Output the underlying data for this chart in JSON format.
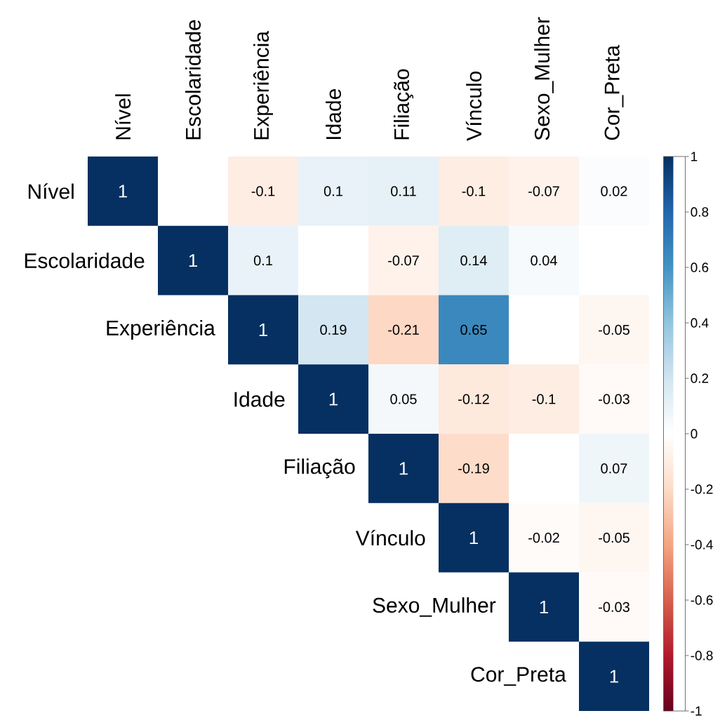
{
  "chart_data": {
    "type": "heatmap",
    "categories": [
      "Nível",
      "Escolaridade",
      "Experiência",
      "Idade",
      "Filiação",
      "Vínculo",
      "Sexo_Mulher",
      "Cor_Preta"
    ],
    "y_categories": [
      "Nível",
      "Escolaridade",
      "Experiência",
      "Idade",
      "Filiação",
      "Vínculo",
      "Sexo_Mulher",
      "Cor_Preta"
    ],
    "cells": [
      [
        1,
        null,
        -0.1,
        0.1,
        0.11,
        -0.1,
        -0.07,
        0.02
      ],
      [
        null,
        1,
        0.1,
        null,
        -0.07,
        0.14,
        0.04,
        null
      ],
      [
        null,
        null,
        1,
        0.19,
        -0.21,
        0.65,
        null,
        -0.05
      ],
      [
        null,
        null,
        null,
        1,
        0.05,
        -0.12,
        -0.1,
        -0.03
      ],
      [
        null,
        null,
        null,
        null,
        1,
        -0.19,
        null,
        0.07
      ],
      [
        null,
        null,
        null,
        null,
        null,
        1,
        -0.02,
        -0.05
      ],
      [
        null,
        null,
        null,
        null,
        null,
        null,
        1,
        -0.03
      ],
      [
        null,
        null,
        null,
        null,
        null,
        null,
        null,
        1
      ]
    ],
    "clim": [
      -1,
      1
    ],
    "cticks": [
      -1,
      -0.8,
      -0.6,
      -0.4,
      -0.2,
      0,
      0.2,
      0.4,
      0.6,
      0.8,
      1
    ],
    "data_labels": true
  }
}
